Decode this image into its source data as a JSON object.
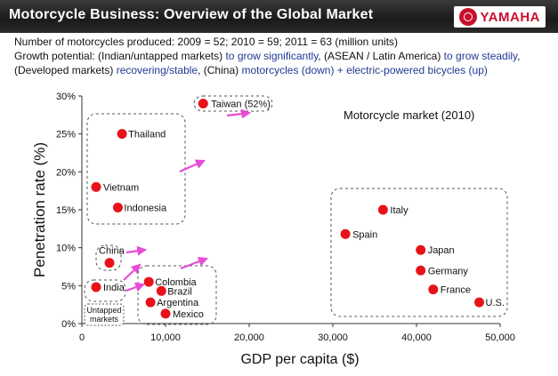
{
  "header": {
    "title": "Motorcycle Business: Overview of the Global Market",
    "brand": "YAMAHA"
  },
  "intro": {
    "production": "Number of motorcycles produced: 2009 = 52; 2010 = 59; 2011 = 63 (million units)",
    "growth_lead": "Growth potential: (Indian/untapped markets)",
    "growth_a": " to grow significantly",
    "growth_b": ", (ASEAN / Latin America)",
    "growth_c": " to grow steadily",
    "growth_d": ", (Developed markets)",
    "growth_e": " recovering/stable",
    "growth_f": ", (China)",
    "growth_g": " motorcycles (down) + electric-powered bicycles (up)"
  },
  "colors": {
    "point": "#e8131a",
    "arrow": "#e64cd6",
    "text_blue": "#1f3a93"
  },
  "chart_data": {
    "type": "scatter",
    "title": "Motorcycle market (2010)",
    "xlabel": "GDP per capita ($)",
    "ylabel": "Penetration rate (%)",
    "xlim": [
      0,
      50000
    ],
    "ylim": [
      0,
      30
    ],
    "x_ticks": [
      "0",
      "10,000",
      "20,000",
      "30,000",
      "40,000",
      "50,000"
    ],
    "y_ticks": [
      "0%",
      "5%",
      "10%",
      "15%",
      "20%",
      "25%",
      "30%"
    ],
    "grid": false,
    "points": [
      {
        "label": "Taiwan (52%)",
        "x": 14500,
        "y": 29
      },
      {
        "label": "Thailand",
        "x": 4800,
        "y": 25
      },
      {
        "label": "Vietnam",
        "x": 1700,
        "y": 18
      },
      {
        "label": "Indonesia",
        "x": 4300,
        "y": 15.3
      },
      {
        "label": "China",
        "x": 3300,
        "y": 8
      },
      {
        "label": "India",
        "x": 1700,
        "y": 4.8
      },
      {
        "label": "Colombia",
        "x": 8000,
        "y": 5.5
      },
      {
        "label": "Brazil",
        "x": 9500,
        "y": 4.3
      },
      {
        "label": "Argentina",
        "x": 8200,
        "y": 2.8
      },
      {
        "label": "Mexico",
        "x": 10000,
        "y": 1.3
      },
      {
        "label": "Italy",
        "x": 36000,
        "y": 15
      },
      {
        "label": "Spain",
        "x": 31500,
        "y": 11.8
      },
      {
        "label": "Japan",
        "x": 40500,
        "y": 9.7
      },
      {
        "label": "Germany",
        "x": 40500,
        "y": 7
      },
      {
        "label": "France",
        "x": 42000,
        "y": 4.5
      },
      {
        "label": "U.S.",
        "x": 47500,
        "y": 2.8
      }
    ],
    "annotations": [
      "Untapped markets"
    ]
  }
}
